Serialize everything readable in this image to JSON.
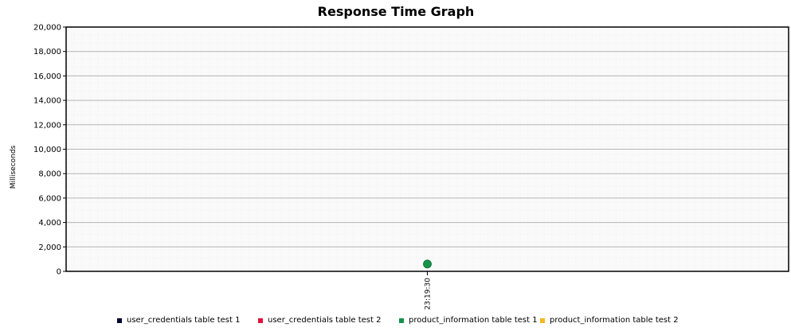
{
  "chart_data": {
    "type": "line",
    "title": "Response Time Graph",
    "ylabel": "Milliseconds",
    "xlabel": "",
    "ylim": [
      0,
      20000
    ],
    "yticks": [
      0,
      2000,
      4000,
      6000,
      8000,
      10000,
      12000,
      14000,
      16000,
      18000,
      20000
    ],
    "ytick_labels": [
      "0",
      "2,000",
      "4,000",
      "6,000",
      "8,000",
      "10,000",
      "12,000",
      "14,000",
      "16,000",
      "18,000",
      "20,000"
    ],
    "categories": [
      "23:19:30"
    ],
    "grid": true,
    "legend_position": "bottom",
    "series": [
      {
        "name": "user_credentials table test 1",
        "color": "#000033",
        "values": [
          null
        ]
      },
      {
        "name": "user_credentials table test 2",
        "color": "#e0103a",
        "values": [
          null
        ]
      },
      {
        "name": "product_information table test 1",
        "color": "#16934a",
        "values": [
          600
        ]
      },
      {
        "name": "product_information table test 2",
        "color": "#f5b821",
        "values": [
          null
        ]
      }
    ]
  }
}
